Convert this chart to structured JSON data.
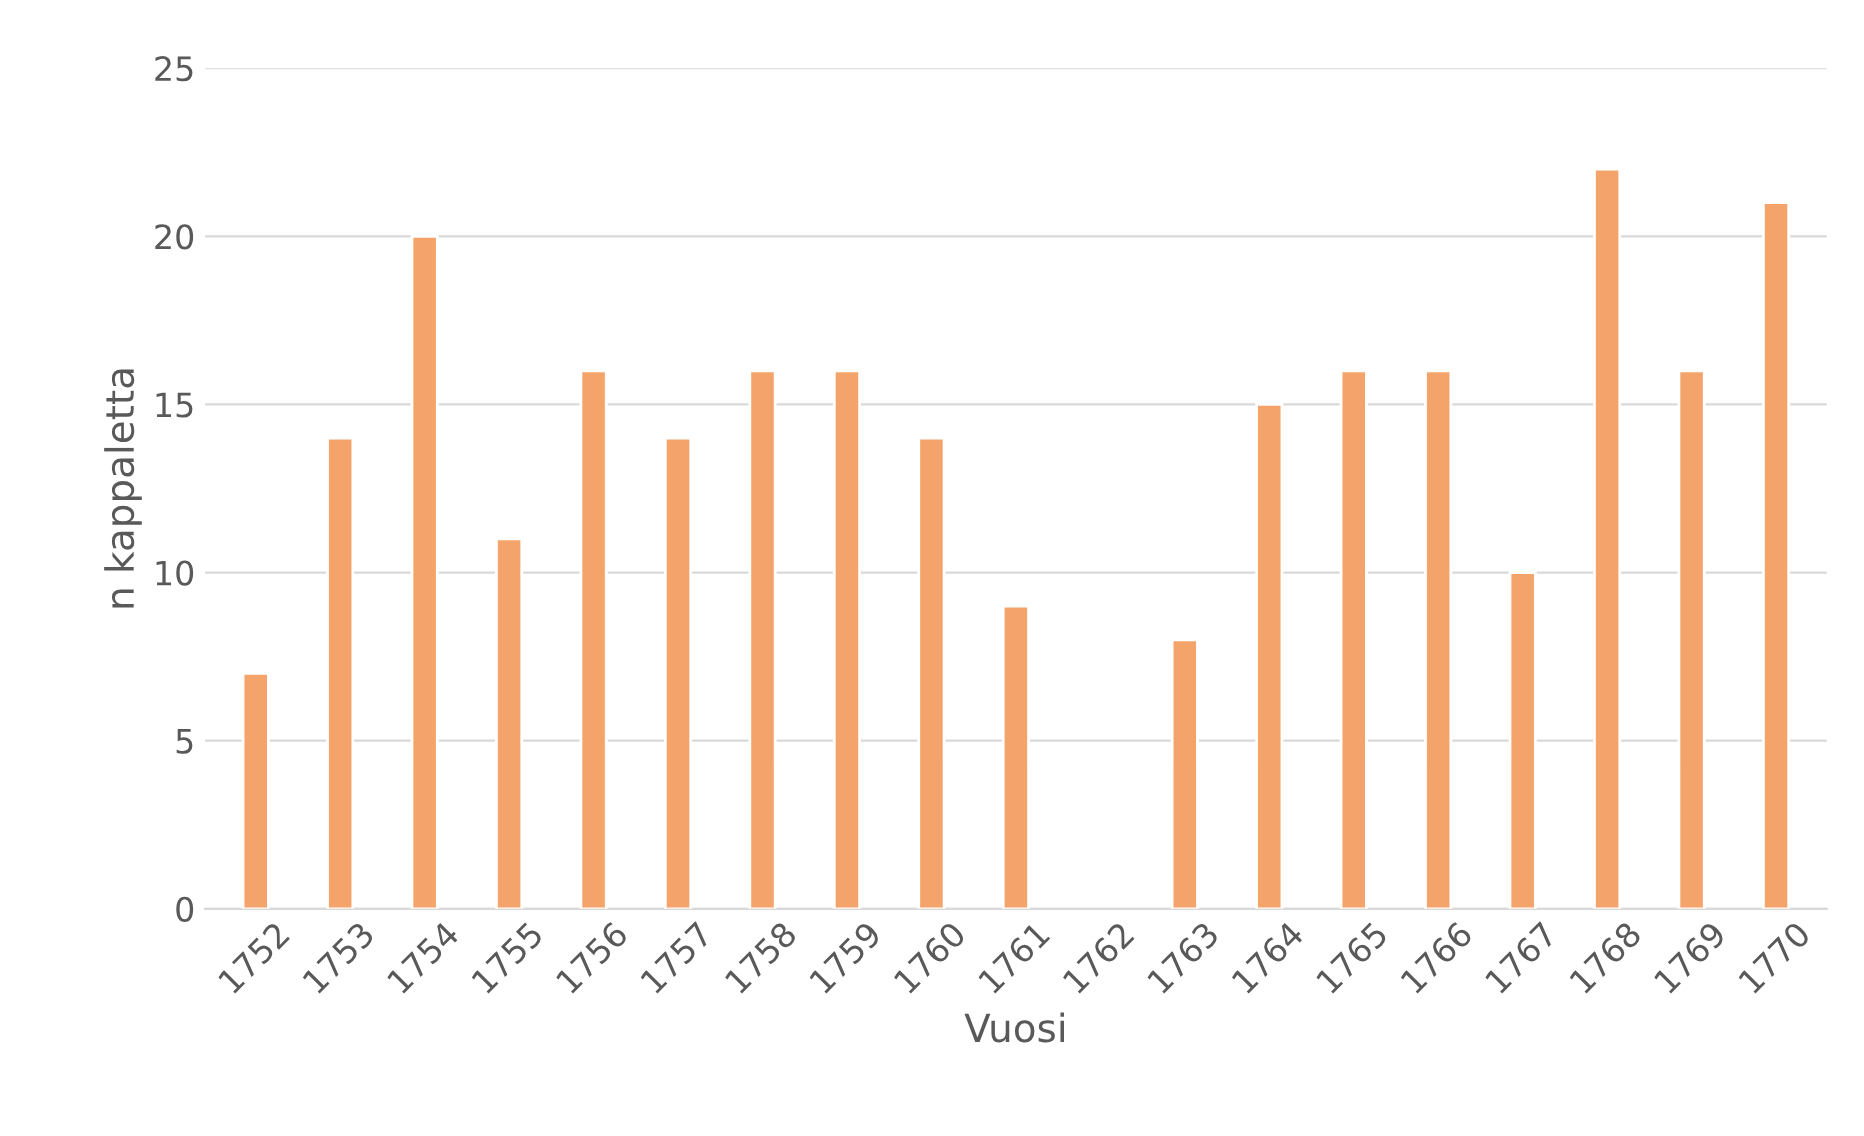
{
  "chart_data": {
    "type": "bar",
    "xlabel": "Vuosi",
    "ylabel": "n kappaletta",
    "categories": [
      "1752",
      "1753",
      "1754",
      "1755",
      "1756",
      "1757",
      "1758",
      "1759",
      "1760",
      "1761",
      "1762",
      "1763",
      "1764",
      "1765",
      "1766",
      "1767",
      "1768",
      "1769",
      "1770"
    ],
    "values": [
      7,
      14,
      20,
      11,
      16,
      14,
      16,
      16,
      14,
      9,
      null,
      8,
      15,
      16,
      16,
      10,
      22,
      16,
      21
    ],
    "color": "#f4a46a",
    "ylim": [
      0,
      25
    ],
    "yticks": [
      0,
      5,
      10,
      15,
      20,
      25
    ],
    "grid": "y",
    "legend": false
  }
}
